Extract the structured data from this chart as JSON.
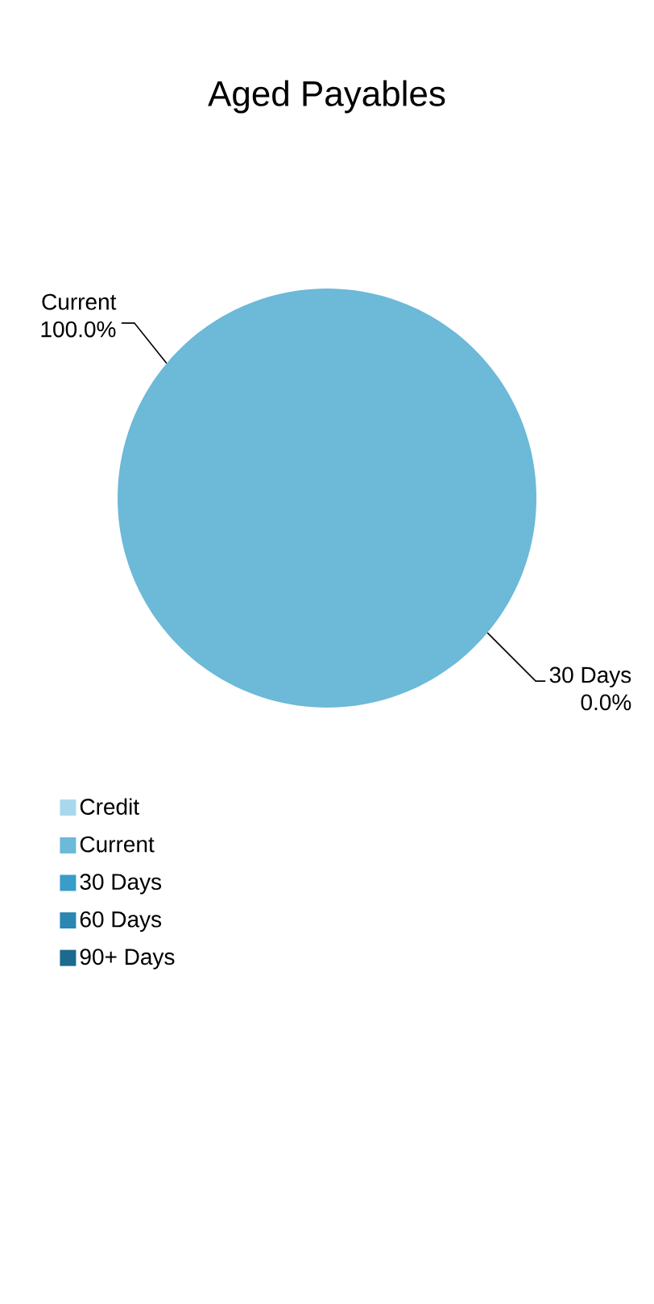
{
  "chart_data": {
    "type": "pie",
    "title": "Aged Payables",
    "categories": [
      "Credit",
      "Current",
      "30 Days",
      "60 Days",
      "90+ Days"
    ],
    "values": [
      0,
      100,
      0,
      0,
      0
    ],
    "value_labels": [
      null,
      "100.0%",
      "0.0%",
      null,
      null
    ],
    "colors": [
      "#a9d8ec",
      "#6cb9d8",
      "#3a9cc8",
      "#2a86b2",
      "#1c6a8e"
    ],
    "legend": "bottom"
  }
}
